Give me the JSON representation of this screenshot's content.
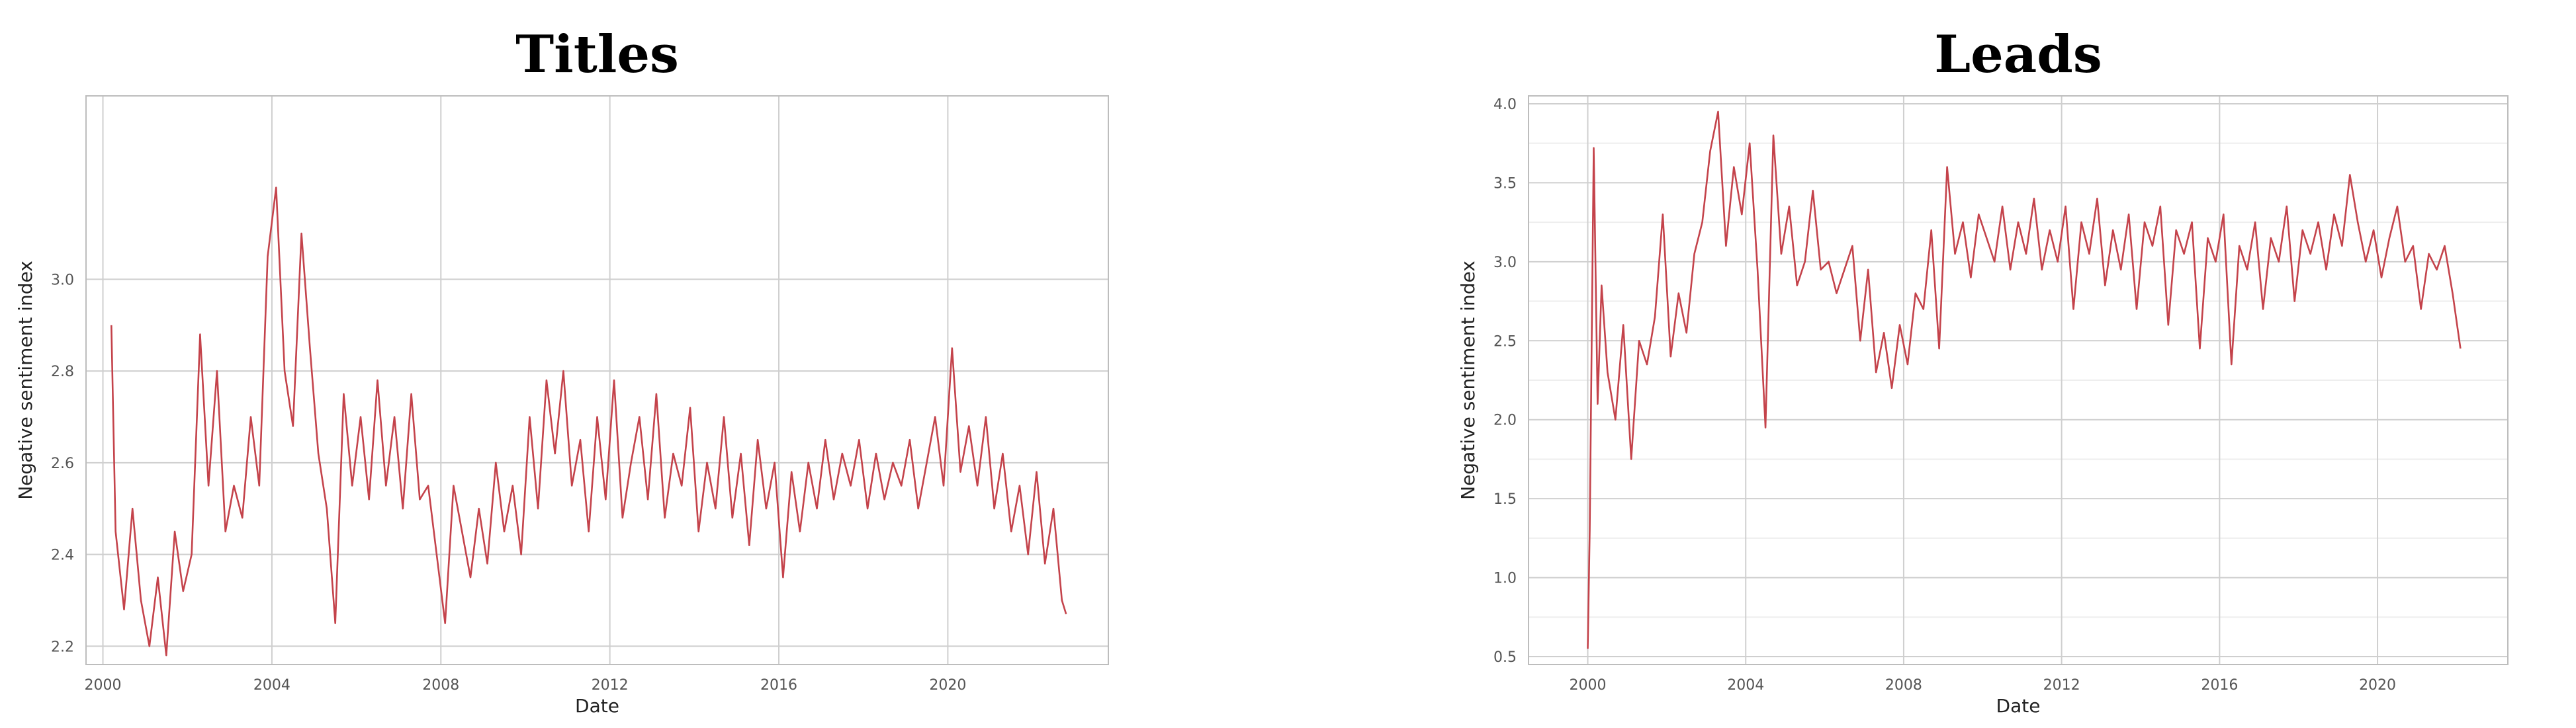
{
  "chart_data": [
    {
      "type": "line",
      "title": "Titles",
      "xlabel": "Date",
      "ylabel": "Negative sentiment index",
      "xlim": [
        1999.6,
        2023.8
      ],
      "ylim": [
        2.16,
        3.4
      ],
      "xticks": [
        2000,
        2004,
        2008,
        2012,
        2016,
        2020
      ],
      "yticks": [
        2.2,
        2.4,
        2.6,
        2.8,
        3.0
      ],
      "ytick_labels": [
        "2.2",
        "2.4",
        "2.6",
        "2.8",
        "3.0"
      ],
      "grid": true,
      "color": "#c4434b",
      "series": [
        {
          "x": [
            2000.2,
            2000.3,
            2000.5,
            2000.7,
            2000.9,
            2001.1,
            2001.3,
            2001.5,
            2001.7,
            2001.9,
            2002.1,
            2002.3,
            2002.5,
            2002.7,
            2002.9,
            2003.1,
            2003.3,
            2003.5,
            2003.7,
            2003.9,
            2004.1,
            2004.3,
            2004.5,
            2004.7,
            2004.9,
            2005.1,
            2005.3,
            2005.5,
            2005.7,
            2005.9,
            2006.1,
            2006.3,
            2006.5,
            2006.7,
            2006.9,
            2007.1,
            2007.3,
            2007.5,
            2007.7,
            2007.9,
            2008.1,
            2008.3,
            2008.5,
            2008.7,
            2008.9,
            2009.1,
            2009.3,
            2009.5,
            2009.7,
            2009.9,
            2010.1,
            2010.3,
            2010.5,
            2010.7,
            2010.9,
            2011.1,
            2011.3,
            2011.5,
            2011.7,
            2011.9,
            2012.1,
            2012.3,
            2012.5,
            2012.7,
            2012.9,
            2013.1,
            2013.3,
            2013.5,
            2013.7,
            2013.9,
            2014.1,
            2014.3,
            2014.5,
            2014.7,
            2014.9,
            2015.1,
            2015.3,
            2015.5,
            2015.7,
            2015.9,
            2016.1,
            2016.3,
            2016.5,
            2016.7,
            2016.9,
            2017.1,
            2017.3,
            2017.5,
            2017.7,
            2017.9,
            2018.1,
            2018.3,
            2018.5,
            2018.7,
            2018.9,
            2019.1,
            2019.3,
            2019.5,
            2019.7,
            2019.9,
            2020.1,
            2020.3,
            2020.5,
            2020.7,
            2020.9,
            2021.1,
            2021.3,
            2021.5,
            2021.7,
            2021.9,
            2022.1,
            2022.3,
            2022.5,
            2022.7,
            2022.8
          ],
          "y": [
            2.9,
            2.45,
            2.28,
            2.5,
            2.3,
            2.2,
            2.35,
            2.18,
            2.45,
            2.32,
            2.4,
            2.88,
            2.55,
            2.8,
            2.45,
            2.55,
            2.48,
            2.7,
            2.55,
            3.05,
            3.2,
            2.8,
            2.68,
            3.1,
            2.85,
            2.62,
            2.5,
            2.25,
            2.75,
            2.55,
            2.7,
            2.52,
            2.78,
            2.55,
            2.7,
            2.5,
            2.75,
            2.52,
            2.55,
            2.4,
            2.25,
            2.55,
            2.45,
            2.35,
            2.5,
            2.38,
            2.6,
            2.45,
            2.55,
            2.4,
            2.7,
            2.5,
            2.78,
            2.62,
            2.8,
            2.55,
            2.65,
            2.45,
            2.7,
            2.52,
            2.78,
            2.48,
            2.6,
            2.7,
            2.52,
            2.75,
            2.48,
            2.62,
            2.55,
            2.72,
            2.45,
            2.6,
            2.5,
            2.7,
            2.48,
            2.62,
            2.42,
            2.65,
            2.5,
            2.6,
            2.35,
            2.58,
            2.45,
            2.6,
            2.5,
            2.65,
            2.52,
            2.62,
            2.55,
            2.65,
            2.5,
            2.62,
            2.52,
            2.6,
            2.55,
            2.65,
            2.5,
            2.6,
            2.7,
            2.55,
            2.85,
            2.58,
            2.68,
            2.55,
            2.7,
            2.5,
            2.62,
            2.45,
            2.55,
            2.4,
            2.58,
            2.38,
            2.5,
            2.3,
            2.27
          ]
        }
      ]
    },
    {
      "type": "line",
      "title": "Leads",
      "xlabel": "Date",
      "ylabel": "Negative sentiment index",
      "xlim": [
        1998.5,
        2023.3
      ],
      "ylim": [
        0.45,
        4.05
      ],
      "xticks": [
        2000,
        2004,
        2008,
        2012,
        2016,
        2020
      ],
      "yticks": [
        0.5,
        1.0,
        1.5,
        2.0,
        2.5,
        3.0,
        3.5,
        4.0
      ],
      "ytick_labels": [
        "0.5",
        "1.0",
        "1.5",
        "2.0",
        "2.5",
        "3.0",
        "3.5",
        "4.0"
      ],
      "grid": true,
      "color": "#c4434b",
      "series": [
        {
          "x": [
            2000.0,
            2000.05,
            2000.15,
            2000.25,
            2000.35,
            2000.5,
            2000.7,
            2000.9,
            2001.1,
            2001.3,
            2001.5,
            2001.7,
            2001.9,
            2002.1,
            2002.3,
            2002.5,
            2002.7,
            2002.9,
            2003.1,
            2003.3,
            2003.5,
            2003.7,
            2003.9,
            2004.1,
            2004.3,
            2004.5,
            2004.7,
            2004.9,
            2005.1,
            2005.3,
            2005.5,
            2005.7,
            2005.9,
            2006.1,
            2006.3,
            2006.5,
            2006.7,
            2006.9,
            2007.1,
            2007.3,
            2007.5,
            2007.7,
            2007.9,
            2008.1,
            2008.3,
            2008.5,
            2008.7,
            2008.9,
            2009.1,
            2009.3,
            2009.5,
            2009.7,
            2009.9,
            2010.1,
            2010.3,
            2010.5,
            2010.7,
            2010.9,
            2011.1,
            2011.3,
            2011.5,
            2011.7,
            2011.9,
            2012.1,
            2012.3,
            2012.5,
            2012.7,
            2012.9,
            2013.1,
            2013.3,
            2013.5,
            2013.7,
            2013.9,
            2014.1,
            2014.3,
            2014.5,
            2014.7,
            2014.9,
            2015.1,
            2015.3,
            2015.5,
            2015.7,
            2015.9,
            2016.1,
            2016.3,
            2016.5,
            2016.7,
            2016.9,
            2017.1,
            2017.3,
            2017.5,
            2017.7,
            2017.9,
            2018.1,
            2018.3,
            2018.5,
            2018.7,
            2018.9,
            2019.1,
            2019.3,
            2019.5,
            2019.7,
            2019.9,
            2020.1,
            2020.3,
            2020.5,
            2020.7,
            2020.9,
            2021.1,
            2021.3,
            2021.5,
            2021.7,
            2021.9,
            2022.1
          ],
          "y": [
            0.55,
            1.3,
            3.72,
            2.1,
            2.85,
            2.3,
            2.0,
            2.6,
            1.75,
            2.5,
            2.35,
            2.65,
            3.3,
            2.4,
            2.8,
            2.55,
            3.05,
            3.25,
            3.7,
            3.95,
            3.1,
            3.6,
            3.3,
            3.75,
            2.95,
            1.95,
            3.8,
            3.05,
            3.35,
            2.85,
            3.0,
            3.45,
            2.95,
            3.0,
            2.8,
            2.95,
            3.1,
            2.5,
            2.95,
            2.3,
            2.55,
            2.2,
            2.6,
            2.35,
            2.8,
            2.7,
            3.2,
            2.45,
            3.6,
            3.05,
            3.25,
            2.9,
            3.3,
            3.15,
            3.0,
            3.35,
            2.95,
            3.25,
            3.05,
            3.4,
            2.95,
            3.2,
            3.0,
            3.35,
            2.7,
            3.25,
            3.05,
            3.4,
            2.85,
            3.2,
            2.95,
            3.3,
            2.7,
            3.25,
            3.1,
            3.35,
            2.6,
            3.2,
            3.05,
            3.25,
            2.45,
            3.15,
            3.0,
            3.3,
            2.35,
            3.1,
            2.95,
            3.25,
            2.7,
            3.15,
            3.0,
            3.35,
            2.75,
            3.2,
            3.05,
            3.25,
            2.95,
            3.3,
            3.1,
            3.55,
            3.25,
            3.0,
            3.2,
            2.9,
            3.15,
            3.35,
            3.0,
            3.1,
            2.7,
            3.05,
            2.95,
            3.1,
            2.8,
            2.45
          ]
        }
      ]
    }
  ]
}
